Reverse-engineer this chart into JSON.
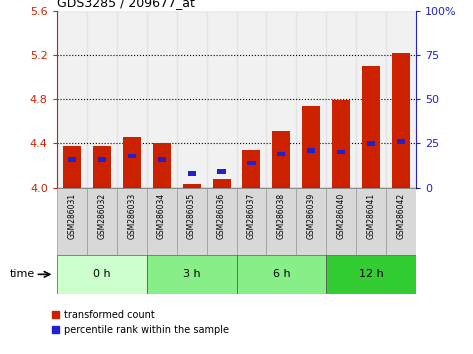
{
  "title": "GDS3285 / 209677_at",
  "categories": [
    "GSM286031",
    "GSM286032",
    "GSM286033",
    "GSM286034",
    "GSM286035",
    "GSM286036",
    "GSM286037",
    "GSM286038",
    "GSM286039",
    "GSM286040",
    "GSM286041",
    "GSM286042"
  ],
  "red_values": [
    4.38,
    4.38,
    4.46,
    4.4,
    4.03,
    4.08,
    4.34,
    4.51,
    4.74,
    4.79,
    5.1,
    5.22
  ],
  "blue_values_pct": [
    16,
    16,
    18,
    16,
    8,
    9,
    14,
    19,
    21,
    20,
    25,
    26
  ],
  "y_min": 4.0,
  "y_max": 5.6,
  "y_ticks": [
    4.0,
    4.4,
    4.8,
    5.2,
    5.6
  ],
  "y_right_ticks": [
    0,
    25,
    50,
    75,
    100
  ],
  "y_right_labels": [
    "0",
    "25",
    "50",
    "75",
    "100%"
  ],
  "bar_width": 0.6,
  "red_color": "#CC2200",
  "blue_color": "#2222CC",
  "time_groups": [
    {
      "label": "0 h",
      "indices": [
        0,
        1,
        2
      ],
      "color": "#CCFFCC"
    },
    {
      "label": "3 h",
      "indices": [
        3,
        4,
        5
      ],
      "color": "#88EE88"
    },
    {
      "label": "6 h",
      "indices": [
        6,
        7,
        8
      ],
      "color": "#88EE88"
    },
    {
      "label": "12 h",
      "indices": [
        9,
        10,
        11
      ],
      "color": "#33CC33"
    }
  ],
  "legend_red": "transformed count",
  "legend_blue": "percentile rank within the sample",
  "time_label": "time",
  "left_axis_color": "#CC2200",
  "right_axis_color": "#2222CC",
  "grid_yticks": [
    4.4,
    4.8,
    5.2
  ]
}
